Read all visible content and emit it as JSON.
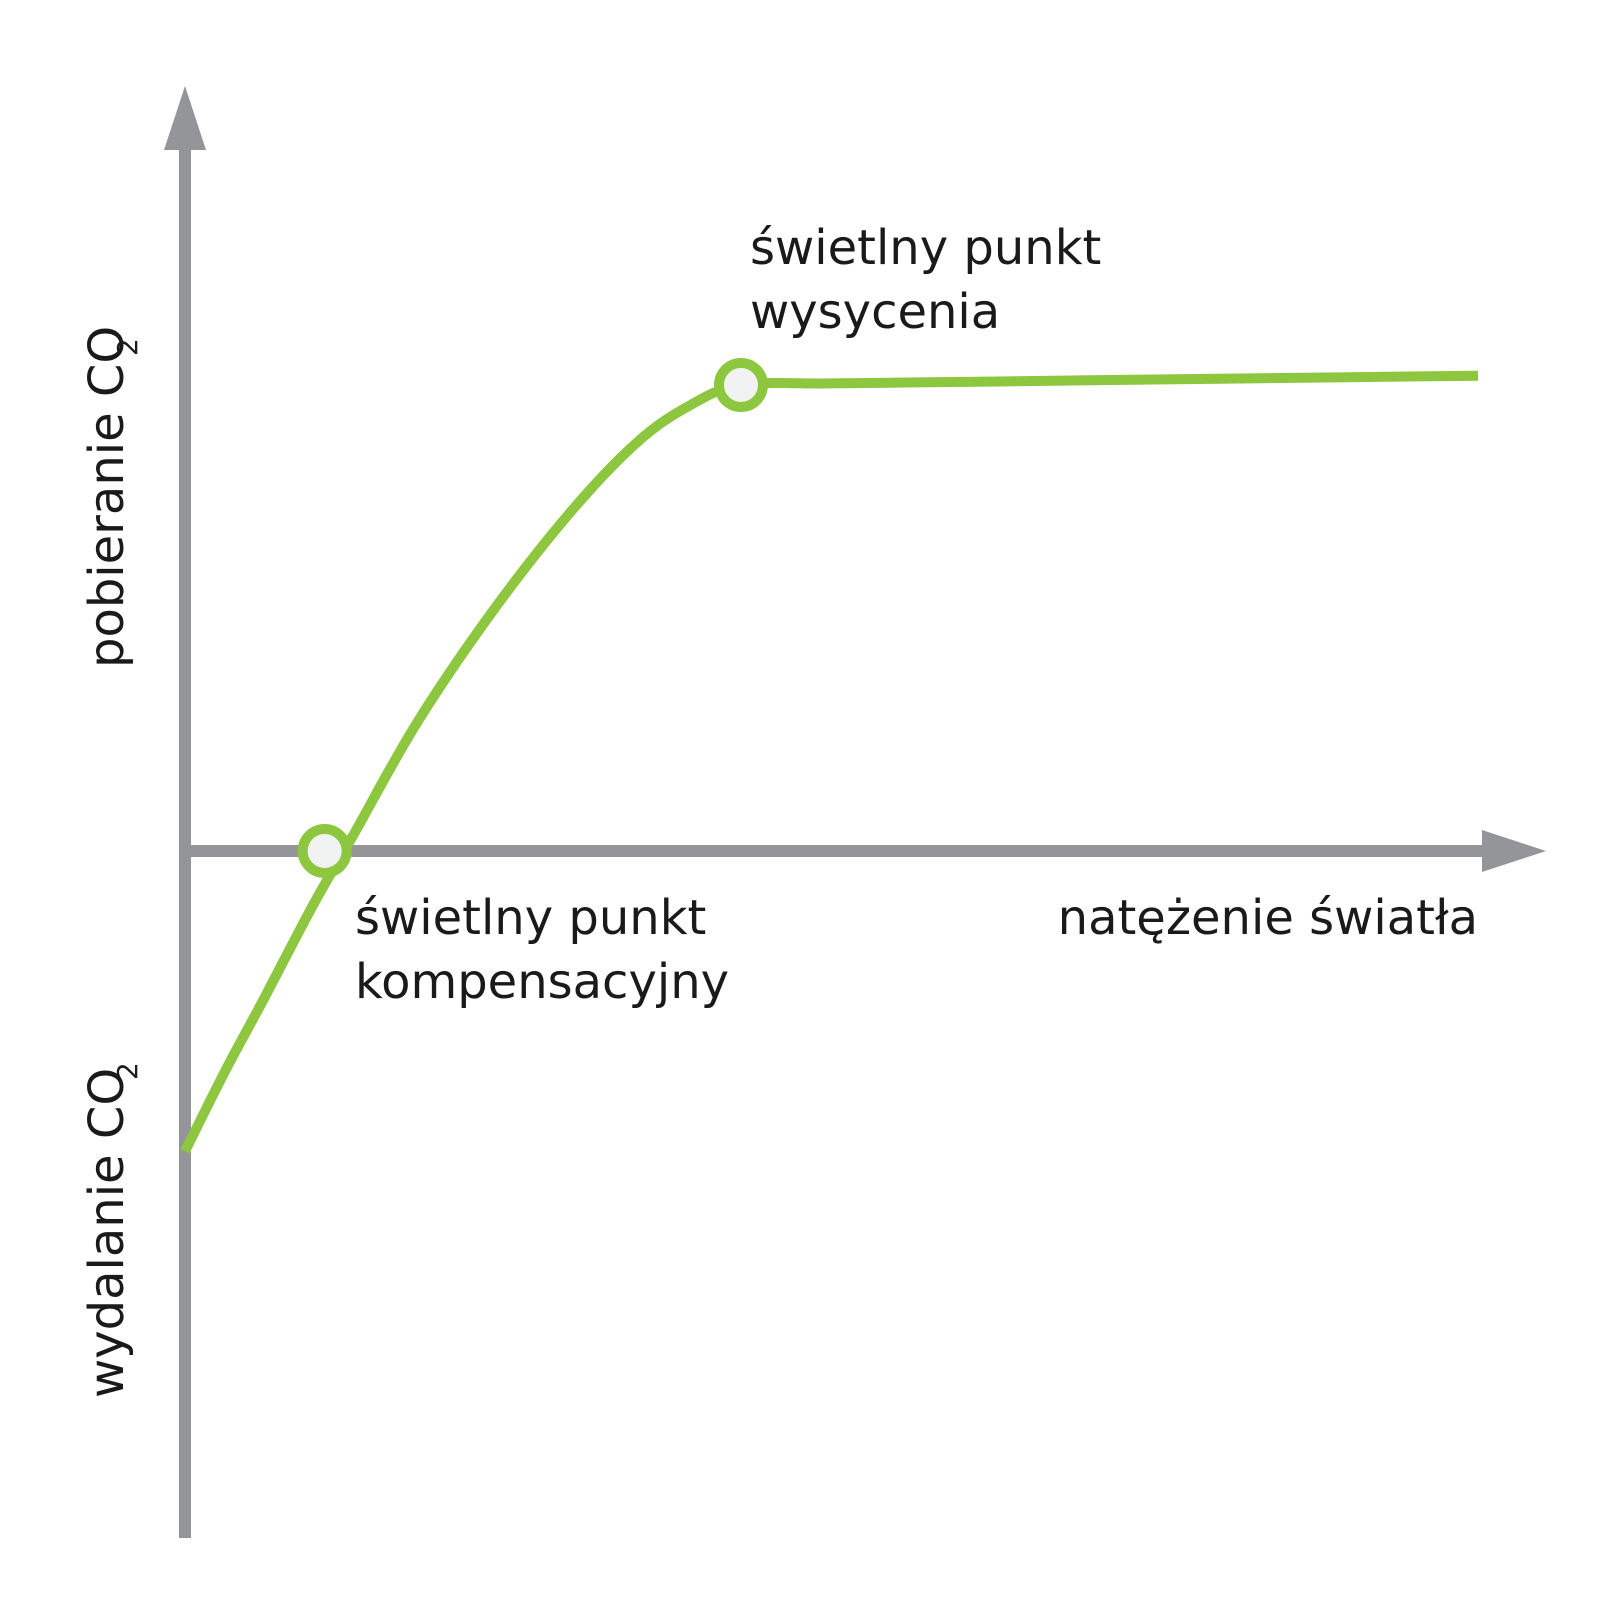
{
  "chart_data": {
    "type": "line",
    "title": "",
    "xlabel": "natężenie światła",
    "ylabel_positive": "pobieranie CO",
    "ylabel_negative": "wydalanie CO",
    "ylabel_subscript": "2",
    "grid": false,
    "legend": "none",
    "x_ticks": [],
    "y_ticks": [],
    "xlim": [
      0,
      1.0
    ],
    "ylim": [
      -1.0,
      1.0
    ],
    "series": [
      {
        "x": [
          0,
          0.03,
          0.06,
          0.1,
          0.13,
          0.18,
          0.24,
          0.3,
          0.35,
          0.39,
          0.43,
          0.5,
          0.6,
          0.7,
          0.8,
          0.9,
          1.0
        ],
        "y": [
          -0.58,
          -0.43,
          -0.29,
          -0.1,
          0.03,
          0.25,
          0.47,
          0.66,
          0.79,
          0.86,
          0.9,
          0.903,
          0.906,
          0.909,
          0.912,
          0.915,
          0.918
        ]
      }
    ],
    "annotations": [
      {
        "x": 0.108,
        "y": 0.0,
        "label_line1": "świetlny punkt",
        "label_line2": "kompensacyjny"
      },
      {
        "x": 0.43,
        "y": 0.9,
        "label_line1": "świetlny punkt",
        "label_line2": "wysycenia"
      }
    ],
    "colors": {
      "axis": "#939598",
      "curve": "#8dc63f",
      "marker_fill": "#f1f2f2"
    }
  }
}
